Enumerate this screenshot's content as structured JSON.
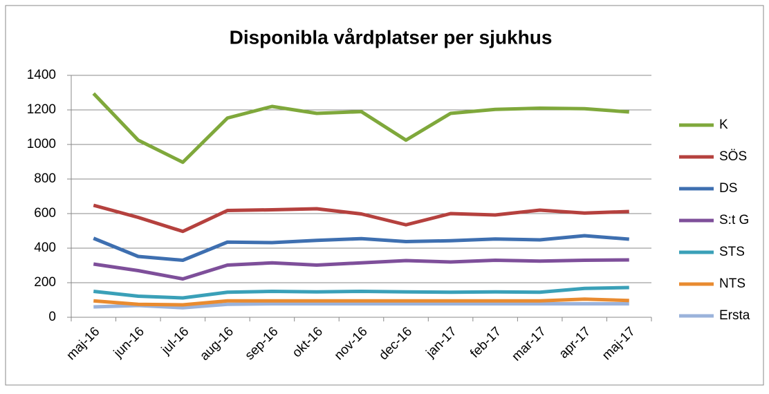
{
  "chart_data": {
    "type": "line",
    "title": "Disponibla vårdplatser per sjukhus",
    "categories": [
      "maj-16",
      "jun-16",
      "jul-16",
      "aug-16",
      "sep-16",
      "okt-16",
      "nov-16",
      "dec-16",
      "jan-17",
      "feb-17",
      "mar-17",
      "apr-17",
      "maj-17"
    ],
    "series": [
      {
        "name": "K",
        "color": "#7fa83b",
        "values": [
          1295,
          1025,
          897,
          1153,
          1220,
          1180,
          1190,
          1025,
          1180,
          1203,
          1210,
          1207,
          1188
        ]
      },
      {
        "name": "SÖS",
        "color": "#b5413e",
        "values": [
          648,
          578,
          497,
          618,
          622,
          628,
          598,
          535,
          600,
          592,
          620,
          603,
          612
        ]
      },
      {
        "name": "DS",
        "color": "#3e6fb0",
        "values": [
          457,
          352,
          330,
          435,
          432,
          445,
          455,
          438,
          443,
          453,
          448,
          472,
          452
        ]
      },
      {
        "name": "S:t G",
        "color": "#7e4f9a",
        "values": [
          308,
          270,
          222,
          302,
          315,
          302,
          315,
          328,
          320,
          330,
          325,
          330,
          332
        ]
      },
      {
        "name": "STS",
        "color": "#3aa0b8",
        "values": [
          150,
          122,
          112,
          145,
          150,
          147,
          150,
          147,
          145,
          147,
          145,
          167,
          172
        ]
      },
      {
        "name": "NTS",
        "color": "#e98b30",
        "values": [
          95,
          75,
          72,
          95,
          95,
          95,
          95,
          95,
          95,
          95,
          95,
          105,
          97
        ]
      },
      {
        "name": "Ersta",
        "color": "#9bb3db",
        "values": [
          60,
          68,
          55,
          75,
          78,
          78,
          78,
          78,
          78,
          78,
          78,
          78,
          78
        ]
      }
    ],
    "ylim": [
      0,
      1400
    ],
    "yticks": [
      0,
      200,
      400,
      600,
      800,
      1000,
      1200,
      1400
    ],
    "grid": true,
    "legend": "right"
  }
}
